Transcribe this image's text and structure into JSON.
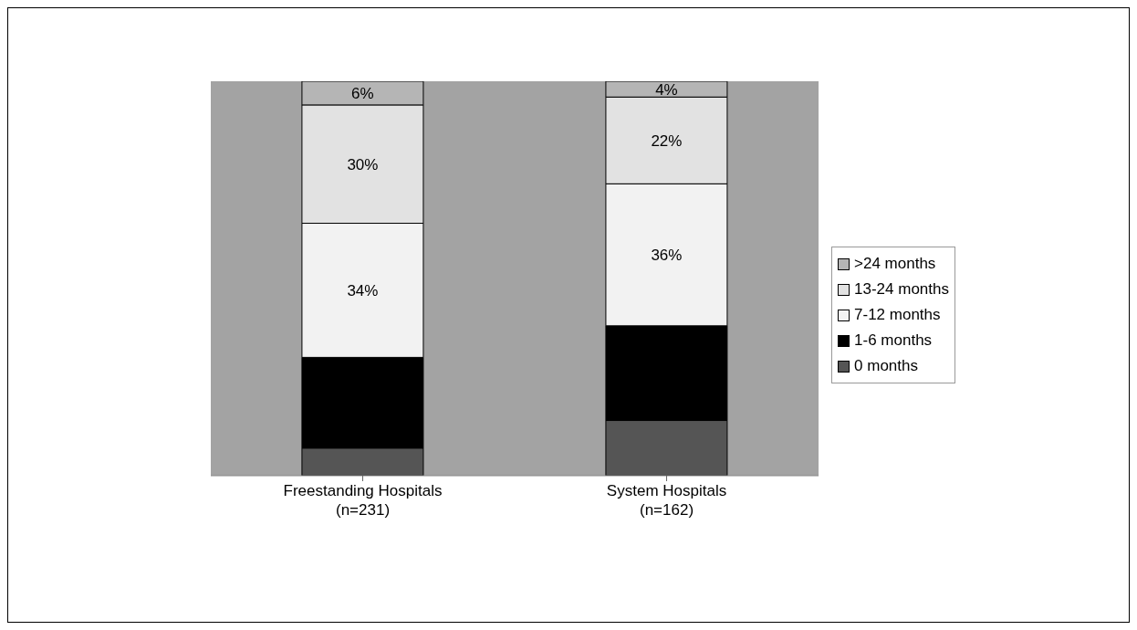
{
  "chart_data": {
    "type": "bar",
    "stacked": true,
    "categories": [
      "Freestanding Hospitals\n(n=231)",
      "System Hospitals\n(n=162)"
    ],
    "series": [
      {
        "name": "0 months",
        "color": "#555555",
        "values": [
          7,
          14
        ],
        "value_labels": [
          null,
          null
        ]
      },
      {
        "name": "1-6 months",
        "color": "#000000",
        "values": [
          23,
          24
        ],
        "value_labels": [
          null,
          null
        ]
      },
      {
        "name": "7-12 months",
        "color": "#f2f2f2",
        "values": [
          34,
          36
        ],
        "value_labels": [
          "34%",
          "36%"
        ]
      },
      {
        "name": "13-24 months",
        "color": "#e2e2e2",
        "values": [
          30,
          22
        ],
        "value_labels": [
          "30%",
          "22%"
        ]
      },
      {
        "name": ">24 months",
        "color": "#b5b5b5",
        "values": [
          6,
          4
        ],
        "value_labels": [
          "6%",
          "4%"
        ]
      }
    ],
    "ylim": [
      0,
      100
    ],
    "tick_labels": "x",
    "grid": false,
    "legend": "right"
  }
}
